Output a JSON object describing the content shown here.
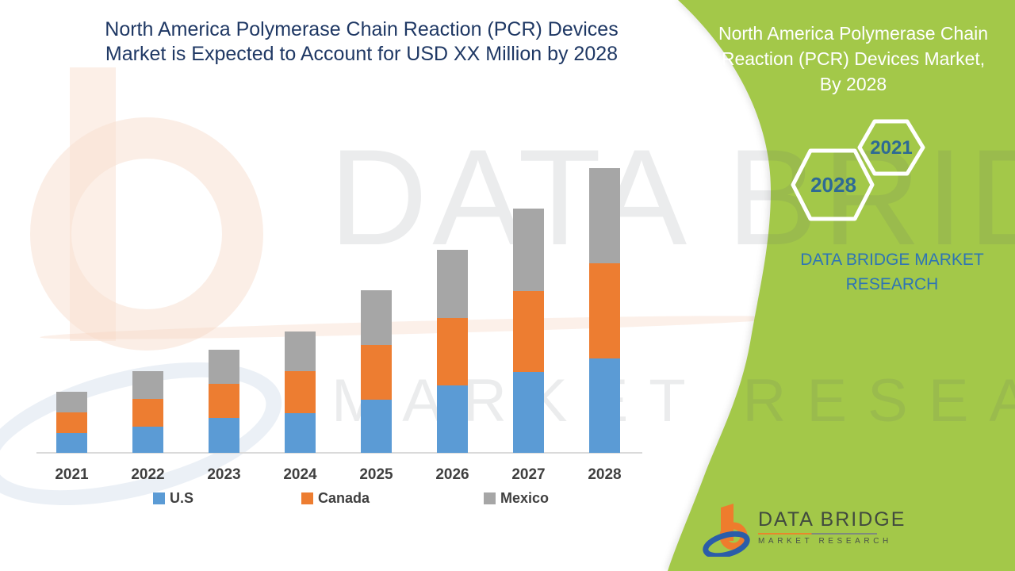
{
  "header": {
    "title_line1": "North America Polymerase Chain Reaction (PCR) Devices",
    "title_line2": "Market is Expected to Account for USD XX Million by 2028"
  },
  "side_panel": {
    "bg_color": "#A3C849",
    "title_lines": [
      "North America Polymerase Chain",
      "Reaction (PCR) Devices Market,",
      "By 2028"
    ],
    "hexagon_small_label": "2021",
    "hexagon_large_label": "2028",
    "hex_label_color": "#2E6A94",
    "caption_line1": "DATA BRIDGE MARKET",
    "caption_line2": "RESEARCH",
    "caption_color": "#2E74B5"
  },
  "watermark": {
    "brand": "DATA BRIDGE",
    "tagline": "MARKET RESEARCH"
  },
  "footer_logo": {
    "brand_name": "DATA BRIDGE",
    "brand_tagline": "MARKET RESEARCH"
  },
  "chart_data": {
    "type": "bar",
    "stacked": true,
    "title": "North America Polymerase Chain Reaction (PCR) Devices Market is Expected to Account for USD XX Million by 2028",
    "categories": [
      "2021",
      "2022",
      "2023",
      "2024",
      "2025",
      "2026",
      "2027",
      "2028"
    ],
    "series": [
      {
        "name": "U.S",
        "color": "#5B9BD5",
        "values": [
          25,
          33,
          44,
          50,
          67,
          85,
          102,
          119
        ]
      },
      {
        "name": "Canada",
        "color": "#ED7D31",
        "values": [
          26,
          35,
          43,
          53,
          69,
          85,
          102,
          120
        ]
      },
      {
        "name": "Mexico",
        "color": "#A6A6A6",
        "values": [
          26,
          35,
          43,
          50,
          69,
          86,
          104,
          120
        ]
      }
    ],
    "stack_totals": [
      77,
      103,
      130,
      153,
      205,
      256,
      308,
      359
    ],
    "value_axis": {
      "visible": false,
      "label": "",
      "note": "no y-axis shown; values are relative heights estimated from pixels, market sized as USD XX Million placeholder"
    },
    "xlabel": "",
    "ylabel": "",
    "legend_position": "bottom",
    "grid": false,
    "title_color": "#1F3864",
    "axis_text_color": "#3F3F3F"
  }
}
